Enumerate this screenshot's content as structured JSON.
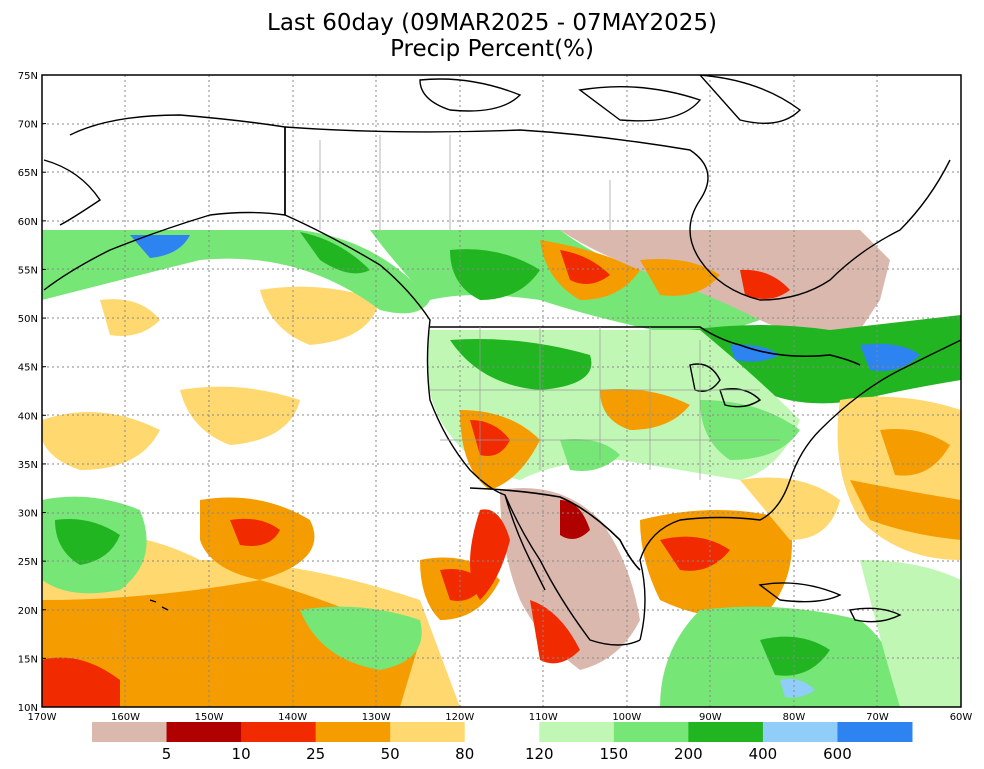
{
  "title": {
    "line1": "Last 60day (09MAR2025 - 07MAY2025)",
    "line2": "Precip Percent(%)"
  },
  "map": {
    "lat_range": [
      10,
      75
    ],
    "lon_range": [
      -170,
      -60
    ],
    "lat_labels": [
      "75N",
      "70N",
      "65N",
      "60N",
      "55N",
      "50N",
      "45N",
      "40N",
      "35N",
      "30N",
      "25N",
      "20N",
      "15N",
      "10N"
    ],
    "lon_labels": [
      "170W",
      "160W",
      "150W",
      "140W",
      "130W",
      "120W",
      "110W",
      "100W",
      "90W",
      "80W",
      "70W",
      "60W"
    ],
    "data_coverage": "Data shown south of 59N; no data in northern Canada/Alaska/Greenland"
  },
  "colorbar": {
    "colors": [
      "#dbb8ad",
      "#b00000",
      "#f22a00",
      "#f59d00",
      "#ffd970",
      "#ffffff",
      "#c1f7b5",
      "#76e676",
      "#22b522",
      "#90cdf9",
      "#2d84f0"
    ],
    "labels": [
      "5",
      "10",
      "25",
      "50",
      "80",
      "120",
      "150",
      "200",
      "400",
      "600"
    ]
  }
}
